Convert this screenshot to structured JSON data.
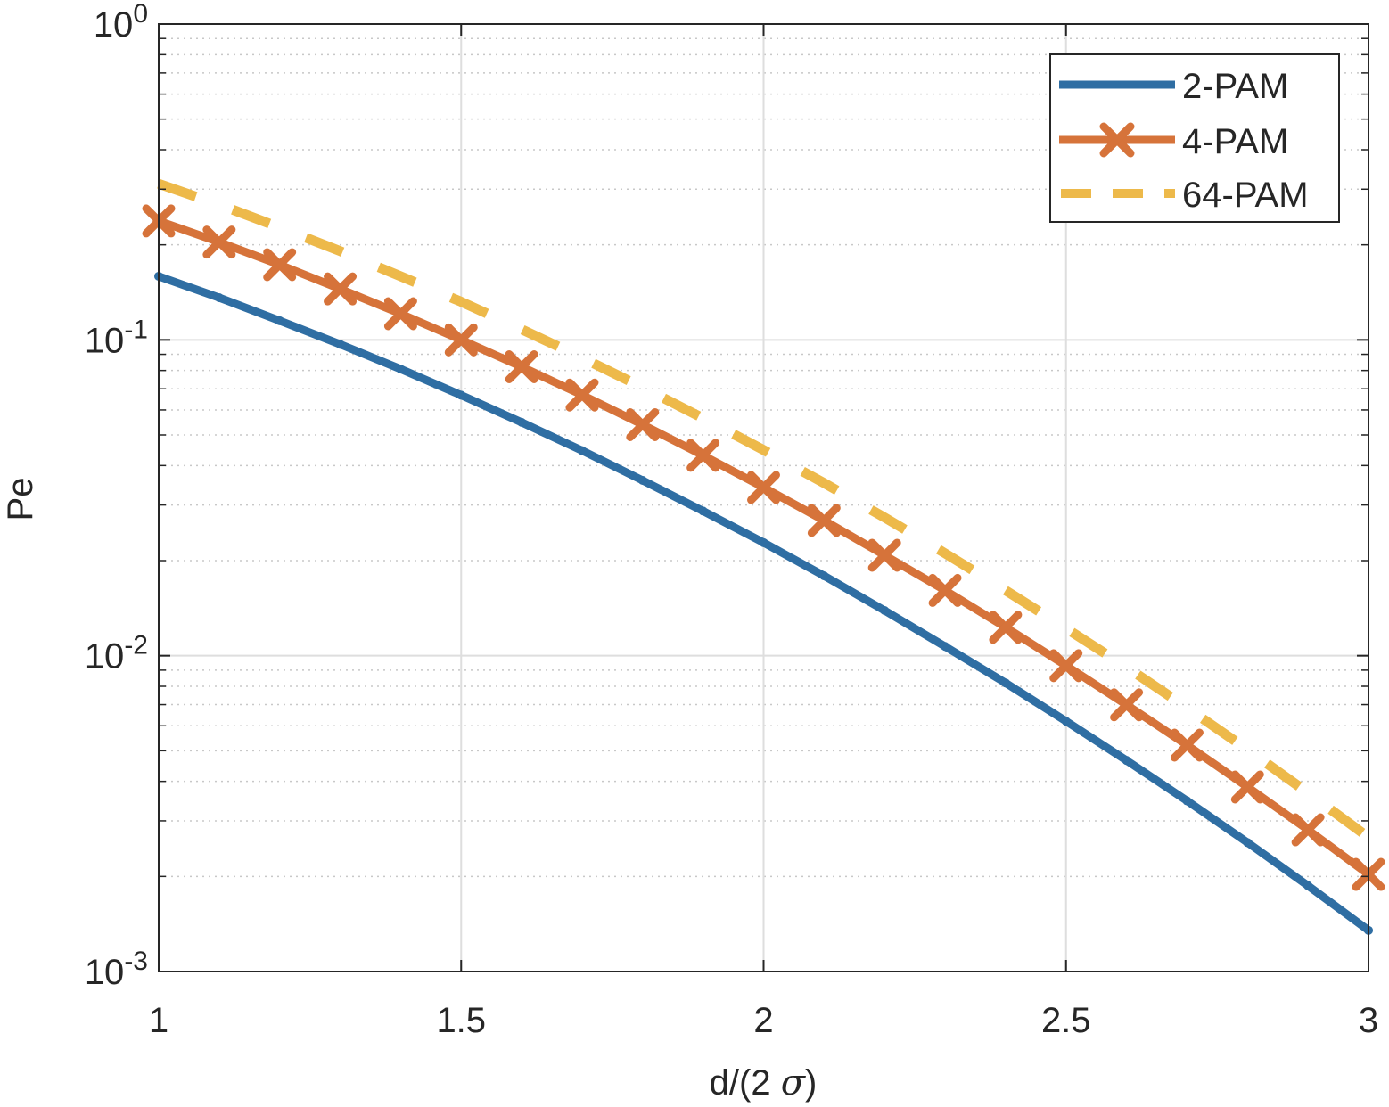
{
  "chart_data": {
    "type": "line",
    "title": "",
    "xlabel": "d/(2 σ)",
    "xlabel_prefix": "d/(2 ",
    "xlabel_symbol": "σ",
    "xlabel_suffix": ")",
    "ylabel": "Pe",
    "xlim": [
      1,
      3
    ],
    "ylim": [
      0.001,
      1
    ],
    "yscale": "log",
    "grid": true,
    "minor_grid": true,
    "legend_position": "top-right",
    "x_ticks": [
      {
        "value": 1,
        "label": "1"
      },
      {
        "value": 1.5,
        "label": "1.5"
      },
      {
        "value": 2,
        "label": "2"
      },
      {
        "value": 2.5,
        "label": "2.5"
      },
      {
        "value": 3,
        "label": "3"
      }
    ],
    "y_ticks": [
      {
        "value": 1,
        "base": "10",
        "exp": "0"
      },
      {
        "value": 0.1,
        "base": "10",
        "exp": "-1"
      },
      {
        "value": 0.01,
        "base": "10",
        "exp": "-2"
      },
      {
        "value": 0.001,
        "base": "10",
        "exp": "-3"
      }
    ],
    "x": [
      1.0,
      1.1,
      1.2,
      1.3,
      1.4,
      1.5,
      1.6,
      1.7,
      1.8,
      1.9,
      2.0,
      2.1,
      2.2,
      2.3,
      2.4,
      2.5,
      2.6,
      2.7,
      2.8,
      2.9,
      3.0
    ],
    "series": [
      {
        "name": "2-PAM",
        "color": "#2f6ea3",
        "style": "solid",
        "marker": "dot",
        "values": [
          0.159,
          0.136,
          0.115,
          0.0968,
          0.0808,
          0.0668,
          0.0548,
          0.0446,
          0.0359,
          0.0287,
          0.0228,
          0.0179,
          0.0139,
          0.0107,
          0.0082,
          0.0062,
          0.00466,
          0.00347,
          0.00256,
          0.00187,
          0.00135
        ]
      },
      {
        "name": "4-PAM",
        "color": "#d6733a",
        "style": "solid",
        "marker": "x",
        "values": [
          0.238,
          0.204,
          0.173,
          0.145,
          0.121,
          0.1,
          0.0822,
          0.0669,
          0.0539,
          0.0431,
          0.0341,
          0.0268,
          0.0208,
          0.0161,
          0.0123,
          0.0093,
          0.00699,
          0.00521,
          0.00384,
          0.00281,
          0.00203
        ]
      },
      {
        "name": "64-PAM",
        "color": "#edb94a",
        "style": "dashed",
        "marker": "none",
        "values": [
          0.312,
          0.268,
          0.227,
          0.191,
          0.159,
          0.132,
          0.108,
          0.0878,
          0.0707,
          0.0565,
          0.0448,
          0.0352,
          0.0274,
          0.0211,
          0.0161,
          0.0122,
          0.0092,
          0.00684,
          0.00504,
          0.00368,
          0.00266
        ]
      }
    ]
  }
}
